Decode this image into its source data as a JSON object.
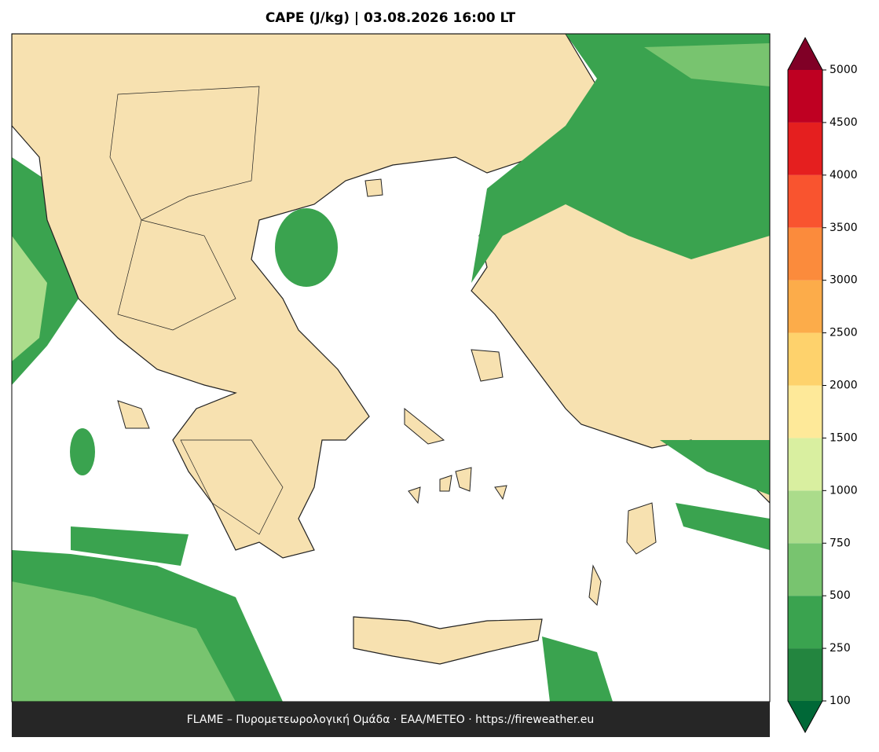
{
  "title": "CAPE (J/kg)  |  03.08.2026 16:00 LT",
  "footer": "FLAME – Πυρομετεωρολογική Ομάδα · ΕΑΑ/METEO · https://fireweather.eu",
  "colorbar": {
    "levels": [
      100,
      250,
      500,
      750,
      1000,
      1500,
      2000,
      2500,
      3000,
      3500,
      4000,
      4500,
      5000
    ],
    "colors": [
      "#23853f",
      "#3aa34f",
      "#78c46f",
      "#abdc8b",
      "#d9efa0",
      "#fee999",
      "#fed26c",
      "#fcac4a",
      "#fb8b3c",
      "#f9542f",
      "#e51f1f",
      "#bf0022"
    ],
    "under_color": "#006837",
    "over_color": "#800026"
  }
}
